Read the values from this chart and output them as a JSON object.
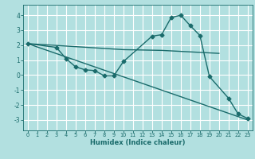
{
  "line1_x": [
    0,
    3,
    4,
    5,
    6,
    7,
    8,
    9,
    10,
    13,
    14,
    15,
    16,
    17,
    18,
    19,
    21,
    22,
    23
  ],
  "line1_y": [
    2.1,
    1.85,
    1.1,
    0.55,
    0.35,
    0.3,
    -0.05,
    -0.05,
    0.9,
    2.6,
    2.7,
    3.85,
    4.0,
    3.3,
    2.65,
    -0.1,
    -1.55,
    -2.6,
    -2.9
  ],
  "line2_x": [
    0,
    10,
    14,
    20
  ],
  "line2_y": [
    2.1,
    1.7,
    1.65,
    1.45
  ],
  "line3_x": [
    0,
    23
  ],
  "line3_y": [
    2.1,
    -3.0
  ],
  "color": "#1a6b6b",
  "bg_color": "#b2e0e0",
  "grid_color": "#ffffff",
  "xlabel": "Humidex (Indice chaleur)",
  "xlim": [
    -0.5,
    23.5
  ],
  "ylim": [
    -3.7,
    4.7
  ],
  "yticks": [
    -3,
    -2,
    -1,
    0,
    1,
    2,
    3,
    4
  ],
  "xticks": [
    0,
    1,
    2,
    3,
    4,
    5,
    6,
    7,
    8,
    9,
    10,
    11,
    12,
    13,
    14,
    15,
    16,
    17,
    18,
    19,
    20,
    21,
    22,
    23
  ],
  "marker": "D",
  "markersize": 2.5,
  "linewidth": 1.0
}
